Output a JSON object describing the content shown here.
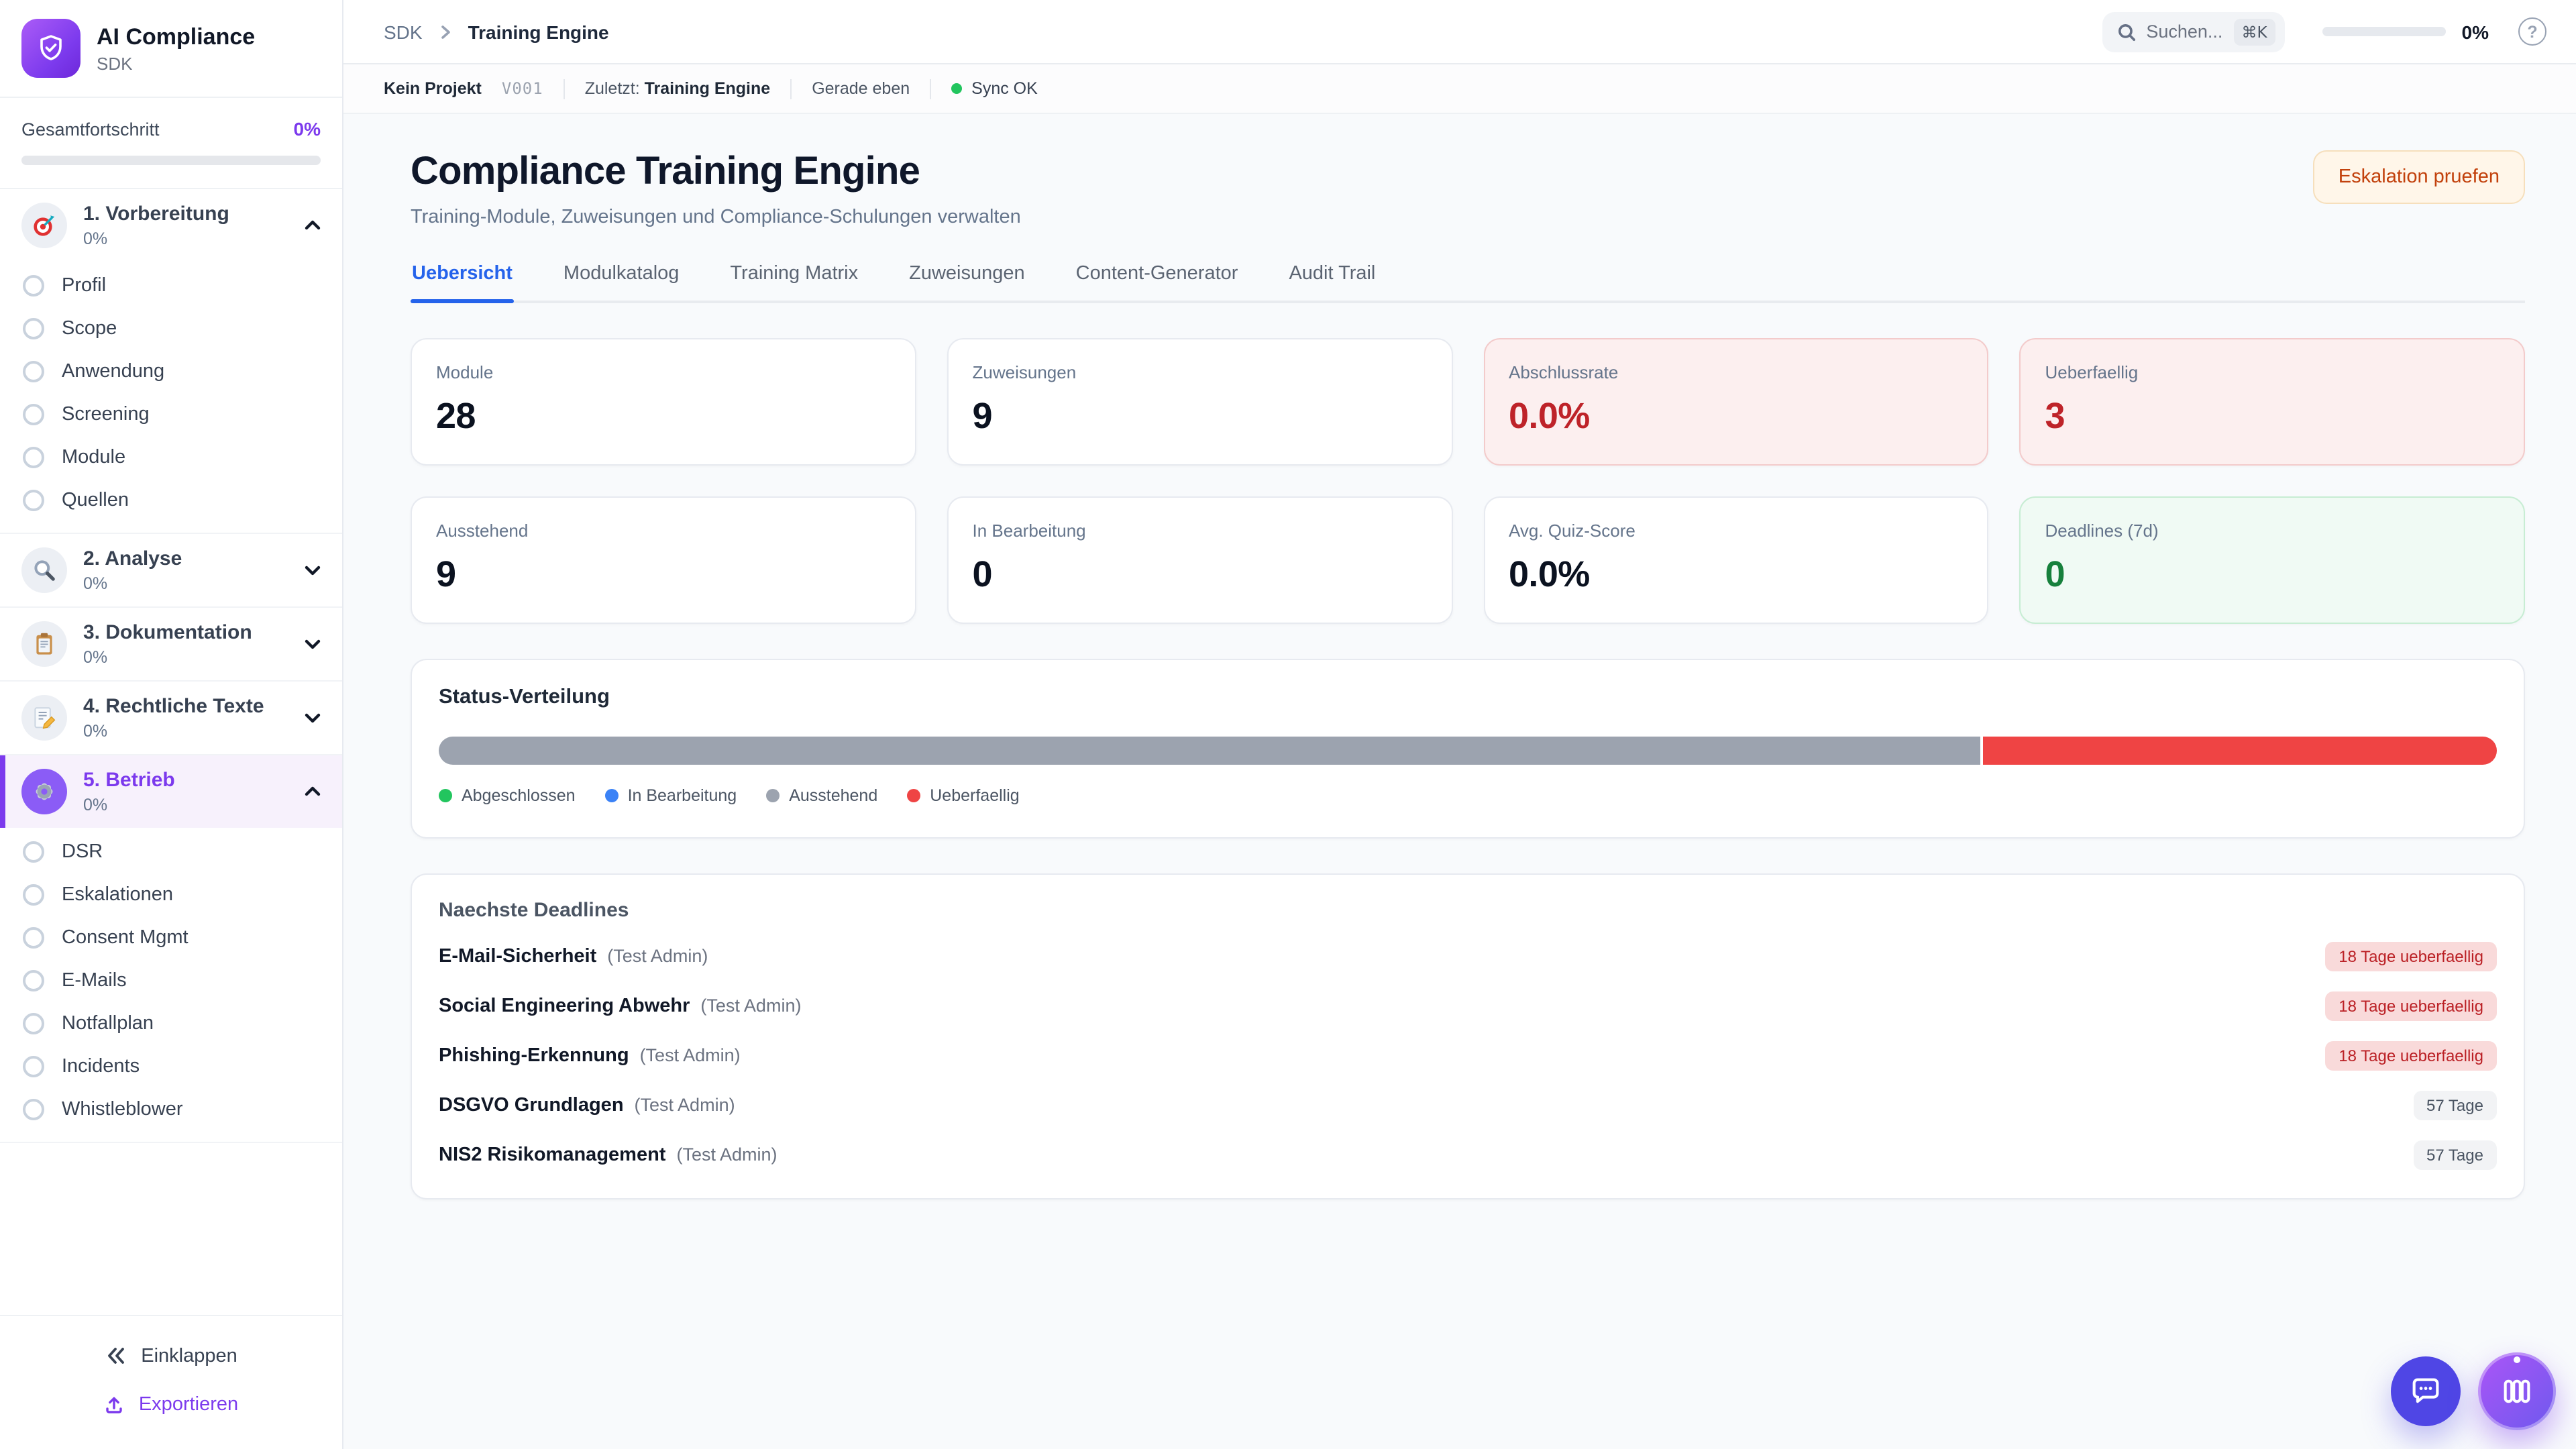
{
  "sidebar": {
    "app_title": "AI Compliance",
    "app_subtitle": "SDK",
    "logo_icon": "shield-check-icon",
    "progress_label": "Gesamtfortschritt",
    "progress_value": "0%",
    "sections": [
      {
        "label": "1. Vorbereitung",
        "percent": "0%",
        "icon": "target-icon",
        "expanded": true,
        "active": false,
        "items": [
          "Profil",
          "Scope",
          "Anwendung",
          "Screening",
          "Module",
          "Quellen"
        ]
      },
      {
        "label": "2. Analyse",
        "percent": "0%",
        "icon": "magnifier-icon",
        "expanded": false,
        "active": false,
        "items": []
      },
      {
        "label": "3. Dokumentation",
        "percent": "0%",
        "icon": "clipboard-icon",
        "expanded": false,
        "active": false,
        "items": []
      },
      {
        "label": "4. Rechtliche Texte",
        "percent": "0%",
        "icon": "memo-pencil-icon",
        "expanded": false,
        "active": false,
        "items": []
      },
      {
        "label": "5. Betrieb",
        "percent": "0%",
        "icon": "gear-icon",
        "expanded": true,
        "active": true,
        "items": [
          "DSR",
          "Eskalationen",
          "Consent Mgmt",
          "E-Mails",
          "Notfallplan",
          "Incidents",
          "Whistleblower"
        ]
      }
    ],
    "collapse_label": "Einklappen",
    "export_label": "Exportieren"
  },
  "topbar": {
    "breadcrumb_root": "SDK",
    "breadcrumb_current": "Training Engine",
    "search_placeholder": "Suchen...",
    "search_shortcut": "⌘K",
    "progress_value": "0%"
  },
  "statusbar": {
    "project": "Kein Projekt",
    "version": "V001",
    "last_label": "Zuletzt:",
    "last_value": "Training Engine",
    "time": "Gerade eben",
    "sync_label": "Sync OK"
  },
  "page": {
    "title": "Compliance Training Engine",
    "subtitle": "Training-Module, Zuweisungen und Compliance-Schulungen verwalten",
    "action_button": "Eskalation pruefen"
  },
  "tabs": [
    {
      "label": "Uebersicht",
      "active": true
    },
    {
      "label": "Modulkatalog",
      "active": false
    },
    {
      "label": "Training Matrix",
      "active": false
    },
    {
      "label": "Zuweisungen",
      "active": false
    },
    {
      "label": "Content-Generator",
      "active": false
    },
    {
      "label": "Audit Trail",
      "active": false
    }
  ],
  "stats": [
    {
      "label": "Module",
      "value": "28",
      "variant": "default"
    },
    {
      "label": "Zuweisungen",
      "value": "9",
      "variant": "default"
    },
    {
      "label": "Abschlussrate",
      "value": "0.0%",
      "variant": "danger"
    },
    {
      "label": "Ueberfaellig",
      "value": "3",
      "variant": "danger"
    },
    {
      "label": "Ausstehend",
      "value": "9",
      "variant": "default"
    },
    {
      "label": "In Bearbeitung",
      "value": "0",
      "variant": "default"
    },
    {
      "label": "Avg. Quiz-Score",
      "value": "0.0%",
      "variant": "default"
    },
    {
      "label": "Deadlines (7d)",
      "value": "0",
      "variant": "success"
    }
  ],
  "status_distribution": {
    "title": "Status-Verteilung",
    "segments": [
      {
        "name": "Ausstehend",
        "percent": 75,
        "color": "#9CA3AF"
      },
      {
        "name": "Ueberfaellig",
        "percent": 25,
        "color": "#EF4444"
      }
    ],
    "legend": [
      {
        "label": "Abgeschlossen",
        "color": "#22C55E"
      },
      {
        "label": "In Bearbeitung",
        "color": "#3B82F6"
      },
      {
        "label": "Ausstehend",
        "color": "#9CA3AF"
      },
      {
        "label": "Ueberfaellig",
        "color": "#EF4444"
      }
    ]
  },
  "chart_data": {
    "type": "bar",
    "orientation": "horizontal-stacked",
    "title": "Status-Verteilung",
    "categories": [
      "Abgeschlossen",
      "In Bearbeitung",
      "Ausstehend",
      "Ueberfaellig"
    ],
    "values": [
      0,
      0,
      9,
      3
    ],
    "percentages": [
      0,
      0,
      75,
      25
    ],
    "colors": [
      "#22C55E",
      "#3B82F6",
      "#9CA3AF",
      "#EF4444"
    ],
    "legend_position": "bottom"
  },
  "deadlines": {
    "title": "Naechste Deadlines",
    "items": [
      {
        "module": "E-Mail-Sicherheit",
        "assignee": "(Test Admin)",
        "badge": "18 Tage ueberfaellig",
        "overdue": true
      },
      {
        "module": "Social Engineering Abwehr",
        "assignee": "(Test Admin)",
        "badge": "18 Tage ueberfaellig",
        "overdue": true
      },
      {
        "module": "Phishing-Erkennung",
        "assignee": "(Test Admin)",
        "badge": "18 Tage ueberfaellig",
        "overdue": true
      },
      {
        "module": "DSGVO Grundlagen",
        "assignee": "(Test Admin)",
        "badge": "57 Tage",
        "overdue": false
      },
      {
        "module": "NIS2 Risikomanagement",
        "assignee": "(Test Admin)",
        "badge": "57 Tage",
        "overdue": false
      }
    ]
  },
  "fabs": [
    {
      "icon": "chat-bubble-icon"
    },
    {
      "icon": "columns-panel-icon"
    }
  ],
  "colors": {
    "brand_purple": "#7C3AED",
    "tab_active_blue": "#2563EB",
    "danger_red": "#BE2329",
    "success_green": "#17803C",
    "warning_orange": "#C2410C",
    "sync_green": "#22C55E"
  }
}
